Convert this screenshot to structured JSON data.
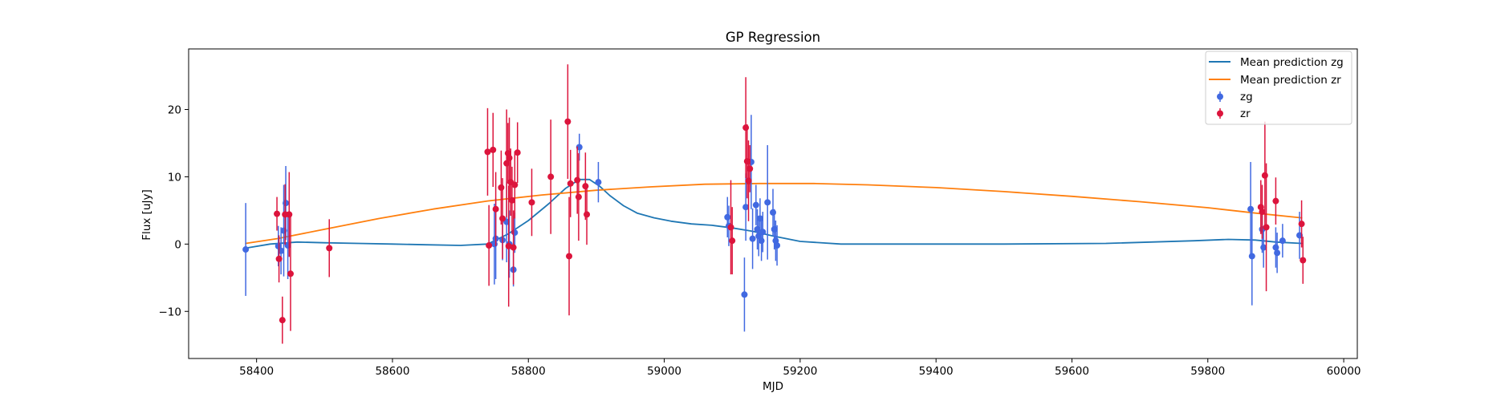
{
  "chart_data": {
    "type": "scatter",
    "title": "GP Regression",
    "xlabel": "MJD",
    "ylabel": "Flux [uJy]",
    "xlim": [
      58300,
      60020
    ],
    "ylim": [
      -17,
      29
    ],
    "xticks": [
      58400,
      58600,
      58800,
      59000,
      59200,
      59400,
      59600,
      59800,
      60000
    ],
    "yticks": [
      -10,
      0,
      10,
      20
    ],
    "grid": false,
    "legend_position": "top-right",
    "lines": [
      {
        "name": "Mean prediction zg",
        "color": "#1f77b4",
        "x": [
          58384,
          58420,
          58460,
          58500,
          58550,
          58600,
          58650,
          58700,
          58740,
          58770,
          58800,
          58830,
          58855,
          58875,
          58890,
          58905,
          58920,
          58940,
          58960,
          58985,
          59010,
          59040,
          59070,
          59100,
          59130,
          59160,
          59200,
          59260,
          59350,
          59500,
          59650,
          59780,
          59830,
          59870,
          59900,
          59938
        ],
        "y": [
          -0.6,
          0.0,
          0.3,
          0.2,
          0.1,
          0.0,
          -0.1,
          -0.2,
          0.0,
          1.5,
          3.5,
          6.0,
          8.3,
          9.6,
          9.6,
          8.6,
          7.2,
          5.7,
          4.6,
          3.9,
          3.4,
          3.0,
          2.8,
          2.4,
          1.9,
          1.2,
          0.4,
          0.0,
          0.0,
          0.0,
          0.1,
          0.5,
          0.7,
          0.6,
          0.3,
          0.1
        ]
      },
      {
        "name": "Mean prediction zr",
        "color": "#ff7f0e",
        "x": [
          58384,
          58430,
          58500,
          58580,
          58660,
          58740,
          58820,
          58900,
          58980,
          59060,
          59140,
          59220,
          59300,
          59400,
          59500,
          59600,
          59700,
          59800,
          59870,
          59938
        ],
        "y": [
          0.1,
          0.8,
          2.2,
          3.8,
          5.2,
          6.4,
          7.3,
          8.0,
          8.5,
          8.9,
          9.0,
          9.0,
          8.8,
          8.4,
          7.8,
          7.1,
          6.3,
          5.4,
          4.6,
          3.9
        ]
      }
    ],
    "series": [
      {
        "name": "zg",
        "color": "#4169e1",
        "points": [
          {
            "x": 58384,
            "y": -0.8,
            "err": 6.9
          },
          {
            "x": 58432,
            "y": -0.3,
            "err": 3.0
          },
          {
            "x": 58436,
            "y": -1.0,
            "err": 3.5
          },
          {
            "x": 58440,
            "y": 2.0,
            "err": 6.8
          },
          {
            "x": 58443,
            "y": 6.1,
            "err": 5.5
          },
          {
            "x": 58446,
            "y": -0.2,
            "err": 5.0
          },
          {
            "x": 58750,
            "y": 0.0,
            "err": 6.0
          },
          {
            "x": 58752,
            "y": 0.8,
            "err": 6.0
          },
          {
            "x": 58762,
            "y": 0.6,
            "err": 3.0
          },
          {
            "x": 58768,
            "y": 3.3,
            "err": 6.0
          },
          {
            "x": 58772,
            "y": 0.0,
            "err": 5.0
          },
          {
            "x": 58778,
            "y": -3.8,
            "err": 2.5
          },
          {
            "x": 58780,
            "y": 1.7,
            "err": 3.0
          },
          {
            "x": 58875,
            "y": 14.4,
            "err": 2.0
          },
          {
            "x": 58903,
            "y": 9.2,
            "err": 3.0
          },
          {
            "x": 59093,
            "y": 4.0,
            "err": 3.0
          },
          {
            "x": 59095,
            "y": 2.7,
            "err": 3.0
          },
          {
            "x": 59118,
            "y": -7.5,
            "err": 5.5
          },
          {
            "x": 59120,
            "y": 5.5,
            "err": 5.0
          },
          {
            "x": 59128,
            "y": 12.2,
            "err": 7.0
          },
          {
            "x": 59130,
            "y": 0.8,
            "err": 4.5
          },
          {
            "x": 59135,
            "y": 5.8,
            "err": 3.0
          },
          {
            "x": 59137,
            "y": 2.2,
            "err": 3.0
          },
          {
            "x": 59139,
            "y": 1.2,
            "err": 3.0
          },
          {
            "x": 59141,
            "y": 3.8,
            "err": 3.0
          },
          {
            "x": 59143,
            "y": 0.5,
            "err": 3.0
          },
          {
            "x": 59145,
            "y": 1.8,
            "err": 3.0
          },
          {
            "x": 59152,
            "y": 6.2,
            "err": 8.5
          },
          {
            "x": 59160,
            "y": 4.7,
            "err": 3.5
          },
          {
            "x": 59162,
            "y": 2.2,
            "err": 3.0
          },
          {
            "x": 59164,
            "y": 0.5,
            "err": 3.0
          },
          {
            "x": 59166,
            "y": -0.2,
            "err": 3.0
          },
          {
            "x": 59863,
            "y": 5.2,
            "err": 7.0
          },
          {
            "x": 59865,
            "y": -1.8,
            "err": 7.3
          },
          {
            "x": 59880,
            "y": 2.2,
            "err": 3.5
          },
          {
            "x": 59882,
            "y": -0.5,
            "err": 3.0
          },
          {
            "x": 59900,
            "y": -0.5,
            "err": 3.0
          },
          {
            "x": 59902,
            "y": -1.3,
            "err": 3.0
          },
          {
            "x": 59910,
            "y": 0.5,
            "err": 2.5
          },
          {
            "x": 59935,
            "y": 1.3,
            "err": 3.5
          }
        ]
      },
      {
        "name": "zr",
        "color": "#dc143c",
        "points": [
          {
            "x": 58430,
            "y": 4.5,
            "err": 2.5
          },
          {
            "x": 58433,
            "y": -2.2,
            "err": 3.5
          },
          {
            "x": 58438,
            "y": -11.3,
            "err": 3.5
          },
          {
            "x": 58442,
            "y": 4.4,
            "err": 4.5
          },
          {
            "x": 58448,
            "y": 4.4,
            "err": 6.3
          },
          {
            "x": 58450,
            "y": -4.4,
            "err": 8.5
          },
          {
            "x": 58507,
            "y": -0.6,
            "err": 4.3
          },
          {
            "x": 58740,
            "y": 13.7,
            "err": 6.5
          },
          {
            "x": 58742,
            "y": -0.2,
            "err": 6.0
          },
          {
            "x": 58748,
            "y": 14.0,
            "err": 5.5
          },
          {
            "x": 58752,
            "y": 5.2,
            "err": 5.5
          },
          {
            "x": 58760,
            "y": 8.4,
            "err": 5.5
          },
          {
            "x": 58762,
            "y": 3.8,
            "err": 6.0
          },
          {
            "x": 58768,
            "y": 12.0,
            "err": 8.0
          },
          {
            "x": 58770,
            "y": 13.5,
            "err": 4.5
          },
          {
            "x": 58771,
            "y": -0.3,
            "err": 9.0
          },
          {
            "x": 58772,
            "y": 12.8,
            "err": 6.0
          },
          {
            "x": 58774,
            "y": 9.2,
            "err": 5.0
          },
          {
            "x": 58776,
            "y": 6.5,
            "err": 5.0
          },
          {
            "x": 58778,
            "y": -0.5,
            "err": 5.5
          },
          {
            "x": 58780,
            "y": 8.8,
            "err": 5.0
          },
          {
            "x": 58784,
            "y": 13.6,
            "err": 4.5
          },
          {
            "x": 58805,
            "y": 6.2,
            "err": 5.0
          },
          {
            "x": 58833,
            "y": 10.0,
            "err": 8.5
          },
          {
            "x": 58858,
            "y": 18.2,
            "err": 8.5
          },
          {
            "x": 58860,
            "y": -1.8,
            "err": 8.8
          },
          {
            "x": 58862,
            "y": 9.0,
            "err": 5.0
          },
          {
            "x": 58872,
            "y": 9.5,
            "err": 5.0
          },
          {
            "x": 58874,
            "y": 7.0,
            "err": 6.5
          },
          {
            "x": 58884,
            "y": 8.6,
            "err": 5.0
          },
          {
            "x": 58886,
            "y": 4.4,
            "err": 4.5
          },
          {
            "x": 59098,
            "y": 2.5,
            "err": 7.0
          },
          {
            "x": 59100,
            "y": 0.5,
            "err": 5.0
          },
          {
            "x": 59120,
            "y": 17.3,
            "err": 7.5
          },
          {
            "x": 59122,
            "y": 12.3,
            "err": 5.5
          },
          {
            "x": 59124,
            "y": 9.4,
            "err": 6.0
          },
          {
            "x": 59126,
            "y": 11.2,
            "err": 3.5
          },
          {
            "x": 59878,
            "y": 5.5,
            "err": 4.0
          },
          {
            "x": 59880,
            "y": 4.8,
            "err": 4.0
          },
          {
            "x": 59884,
            "y": 10.2,
            "err": 8.0
          },
          {
            "x": 59886,
            "y": 2.5,
            "err": 9.5
          },
          {
            "x": 59900,
            "y": 6.4,
            "err": 3.5
          },
          {
            "x": 59938,
            "y": 3.0,
            "err": 3.5
          },
          {
            "x": 59940,
            "y": -2.4,
            "err": 3.5
          }
        ]
      }
    ]
  }
}
